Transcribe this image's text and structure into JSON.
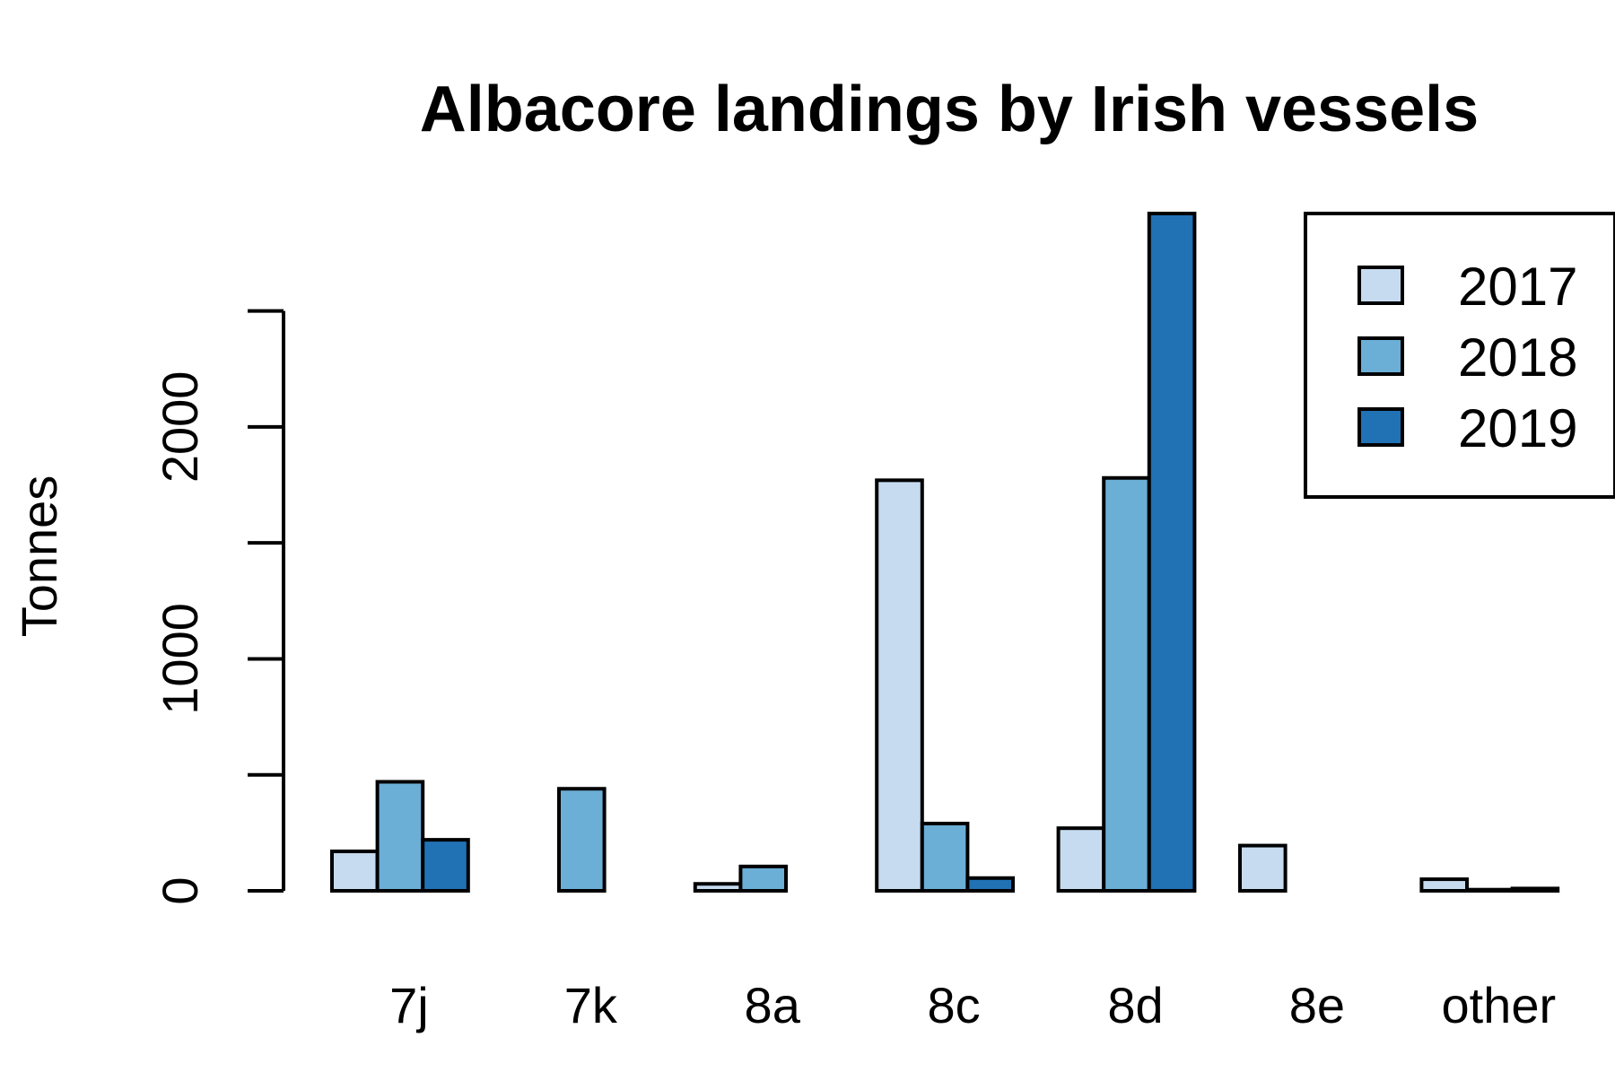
{
  "chart_data": {
    "type": "bar",
    "title": "Albacore landings by Irish vessels",
    "xlabel": "",
    "ylabel": "Tonnes",
    "categories": [
      "7j",
      "7k",
      "8a",
      "8c",
      "8d",
      "8e",
      "other"
    ],
    "series": [
      {
        "name": "2017",
        "color": "#c6dbef",
        "values": [
          170,
          0,
          30,
          1770,
          270,
          195,
          50
        ]
      },
      {
        "name": "2018",
        "color": "#6baed6",
        "values": [
          470,
          440,
          105,
          290,
          1780,
          0,
          5
        ]
      },
      {
        "name": "2019",
        "color": "#2171b5",
        "values": [
          220,
          0,
          0,
          55,
          2920,
          0,
          10
        ]
      }
    ],
    "ylim": [
      0,
      2920
    ],
    "yticks": [
      0,
      500,
      1000,
      1500,
      2000,
      2500
    ],
    "ytick_labels": [
      "0",
      "",
      "1000",
      "",
      "2000",
      ""
    ],
    "legend_position": "top-right",
    "grid": false
  }
}
